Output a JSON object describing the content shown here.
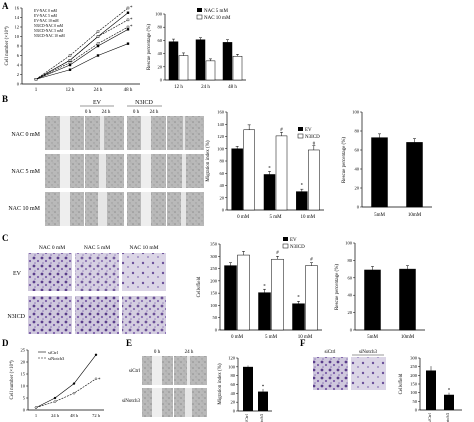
{
  "panels": {
    "A": {
      "letter": "A",
      "growth_chart": {
        "type": "line",
        "ylabel": "Cell number (×10⁴)",
        "yticks": [
          "0",
          "2",
          "4",
          "6",
          "8",
          "10",
          "12",
          "14",
          "16"
        ],
        "xticks": [
          "1",
          "12 h",
          "24 h",
          "48 h"
        ],
        "legend": [
          "EV-NAC 0 mM",
          "EV-NAC 5 mM",
          "EV-NAC 10 mM",
          "N3ICD-NAC 0 mM",
          "N3ICD-NAC 5 mM",
          "N3ICD-NAC 10 mM"
        ],
        "marker": "*",
        "series": [
          {
            "name": "EV-NAC 0 mM",
            "values": [
              1,
              5,
              10,
              15
            ]
          },
          {
            "name": "EV-NAC 5 mM",
            "values": [
              1,
              4,
              8,
              11.5
            ]
          },
          {
            "name": "EV-NAC 10 mM",
            "values": [
              1,
              3,
              6,
              8.5
            ]
          },
          {
            "name": "N3ICD-NAC 0 mM",
            "values": [
              1,
              6,
              11,
              16
            ]
          },
          {
            "name": "N3ICD-NAC 5 mM",
            "values": [
              1,
              5,
              10,
              13.5
            ]
          },
          {
            "name": "N3ICD-NAC 10 mM",
            "values": [
              1,
              4.5,
              8.5,
              12
            ]
          }
        ]
      },
      "rescue_chart": {
        "type": "bar",
        "ylabel": "Rescue percentage (%)",
        "yticks": [
          "0",
          "20",
          "40",
          "60",
          "80",
          "100"
        ],
        "categories": [
          "12 h",
          "24 h",
          "48 h"
        ],
        "legend": [
          "NAC 5 mM",
          "NAC 10 mM"
        ],
        "series": [
          {
            "name": "NAC 5 mM",
            "values": [
              58,
              61,
              57
            ],
            "errors": [
              4,
              3,
              4
            ]
          },
          {
            "name": "NAC 10 mM",
            "values": [
              37,
              29,
              36
            ],
            "errors": [
              4,
              3,
              3
            ]
          }
        ],
        "ylim": [
          0,
          100
        ]
      }
    },
    "B": {
      "letter": "B",
      "groups": [
        "EV",
        "N3ICD"
      ],
      "times": [
        "0 h",
        "24 h"
      ],
      "rows": [
        "NAC 0 mM",
        "NAC 5 mM",
        "NAC 10 mM"
      ],
      "migration_chart": {
        "type": "bar",
        "ylabel": "Migration index (%)",
        "yticks": [
          "0",
          "20",
          "40",
          "60",
          "80",
          "100",
          "120",
          "140",
          "160"
        ],
        "categories": [
          "0 mM",
          "5 mM",
          "10 mM"
        ],
        "legend": [
          "EV",
          "N3ICD"
        ],
        "series": [
          {
            "name": "EV",
            "values": [
              100,
              58,
              30
            ],
            "errors": [
              4,
              5,
              4
            ]
          },
          {
            "name": "N3ICD",
            "values": [
              131,
              121,
              98
            ],
            "errors": [
              8,
              6,
              7
            ]
          }
        ],
        "marks": {
          "ev": "*",
          "n3icd": "#"
        },
        "ylim": [
          0,
          160
        ]
      },
      "rescue_chart": {
        "type": "bar",
        "ylabel": "Rescue percentage (%)",
        "yticks": [
          "0",
          "20",
          "40",
          "60",
          "80",
          "100"
        ],
        "categories": [
          "5mM",
          "10mM"
        ],
        "values": [
          73,
          68
        ],
        "errors": [
          4,
          4
        ],
        "ylim": [
          0,
          100
        ]
      }
    },
    "C": {
      "letter": "C",
      "cols": [
        "NAC 0 mM",
        "NAC 5 mM",
        "NAC 10 mM"
      ],
      "rows": [
        "EV",
        "N3ICD"
      ],
      "cells_chart": {
        "type": "bar",
        "ylabel": "Cells/field",
        "yticks": [
          "0",
          "50",
          "100",
          "150",
          "200",
          "250",
          "300",
          "350"
        ],
        "categories": [
          "0 mM",
          "5 mM",
          "10 mM"
        ],
        "legend": [
          "EV",
          "N3ICD"
        ],
        "series": [
          {
            "name": "EV",
            "values": [
              262,
              152,
              107
            ],
            "errors": [
              12,
              14,
              10
            ]
          },
          {
            "name": "N3ICD",
            "values": [
              305,
              288,
              262
            ],
            "errors": [
              15,
              12,
              12
            ]
          }
        ],
        "marks": {
          "ev": "*",
          "n3icd": "#"
        },
        "ylim": [
          0,
          350
        ]
      },
      "rescue_chart": {
        "type": "bar",
        "ylabel": "Rescue percentage (%)",
        "yticks": [
          "0",
          "20",
          "40",
          "60",
          "80",
          "100"
        ],
        "categories": [
          "5mM",
          "10mM"
        ],
        "values": [
          69,
          70
        ],
        "errors": [
          4,
          4
        ],
        "ylim": [
          0,
          100
        ]
      }
    },
    "D": {
      "letter": "D",
      "growth_chart": {
        "type": "line",
        "ylabel": "Cell number (×10⁴)",
        "yticks": [
          "0",
          "5",
          "10",
          "15",
          "20",
          "25"
        ],
        "xticks": [
          "1",
          "24 h",
          "48 h",
          "72 h"
        ],
        "legend": [
          "siCtrl",
          "siNotch3"
        ],
        "series": [
          {
            "name": "siCtrl",
            "values": [
              1,
              5,
              11,
              23
            ]
          },
          {
            "name": "siNotch3",
            "values": [
              1,
              3.5,
              7,
              13
            ]
          }
        ],
        "marker": "*",
        "ylim": [
          0,
          25
        ]
      }
    },
    "E": {
      "letter": "E",
      "times": [
        "0 h",
        "24 h"
      ],
      "rows": [
        "siCtrl",
        "siNotch3"
      ],
      "migration_chart": {
        "type": "bar",
        "ylabel": "Migration index (%)",
        "yticks": [
          "0",
          "20",
          "40",
          "60",
          "80",
          "100",
          "120"
        ],
        "categories": [
          "siCtrl",
          "siNotch3"
        ],
        "values": [
          100,
          44
        ],
        "errors": [
          3,
          6
        ],
        "marker": "*",
        "ylim": [
          0,
          120
        ]
      }
    },
    "F": {
      "letter": "F",
      "cols": [
        "siCtrl",
        "siNotch3"
      ],
      "cells_chart": {
        "type": "bar",
        "ylabel": "Cells/field",
        "yticks": [
          "0",
          "50",
          "100",
          "150",
          "200",
          "250",
          "300"
        ],
        "categories": [
          "siCtrl",
          "siNotch3"
        ],
        "values": [
          228,
          88
        ],
        "errors": [
          25,
          12
        ],
        "marker": "*",
        "ylim": [
          0,
          300
        ]
      }
    }
  },
  "chart_data": [
    {
      "type": "line",
      "panel": "A",
      "series": [
        {
          "name": "EV-NAC 0 mM",
          "x": [
            "1",
            "12 h",
            "24 h",
            "48 h"
          ],
          "values": [
            1,
            5,
            10,
            15
          ]
        },
        {
          "name": "EV-NAC 5 mM",
          "x": [
            "1",
            "12 h",
            "24 h",
            "48 h"
          ],
          "values": [
            1,
            4,
            8,
            11.5
          ]
        },
        {
          "name": "EV-NAC 10 mM",
          "x": [
            "1",
            "12 h",
            "24 h",
            "48 h"
          ],
          "values": [
            1,
            3,
            6,
            8.5
          ]
        },
        {
          "name": "N3ICD-NAC 0 mM",
          "x": [
            "1",
            "12 h",
            "24 h",
            "48 h"
          ],
          "values": [
            1,
            6,
            11,
            16
          ]
        },
        {
          "name": "N3ICD-NAC 5 mM",
          "x": [
            "1",
            "12 h",
            "24 h",
            "48 h"
          ],
          "values": [
            1,
            5,
            10,
            13.5
          ]
        },
        {
          "name": "N3ICD-NAC 10 mM",
          "x": [
            "1",
            "12 h",
            "24 h",
            "48 h"
          ],
          "values": [
            1,
            4.5,
            8.5,
            12
          ]
        }
      ],
      "ylabel": "Cell number (×10⁴)",
      "ylim": [
        0,
        16
      ]
    },
    {
      "type": "bar",
      "panel": "A",
      "categories": [
        "12 h",
        "24 h",
        "48 h"
      ],
      "series": [
        {
          "name": "NAC 5 mM",
          "values": [
            58,
            61,
            57
          ]
        },
        {
          "name": "NAC 10 mM",
          "values": [
            37,
            29,
            36
          ]
        }
      ],
      "ylabel": "Rescue percentage (%)",
      "ylim": [
        0,
        100
      ]
    },
    {
      "type": "bar",
      "panel": "B",
      "categories": [
        "0 mM",
        "5 mM",
        "10 mM"
      ],
      "series": [
        {
          "name": "EV",
          "values": [
            100,
            58,
            30
          ]
        },
        {
          "name": "N3ICD",
          "values": [
            131,
            121,
            98
          ]
        }
      ],
      "ylabel": "Migration index (%)",
      "ylim": [
        0,
        160
      ]
    },
    {
      "type": "bar",
      "panel": "B",
      "categories": [
        "5mM",
        "10mM"
      ],
      "values": [
        73,
        68
      ],
      "ylabel": "Rescue percentage (%)",
      "ylim": [
        0,
        100
      ]
    },
    {
      "type": "bar",
      "panel": "C",
      "categories": [
        "0 mM",
        "5 mM",
        "10 mM"
      ],
      "series": [
        {
          "name": "EV",
          "values": [
            262,
            152,
            107
          ]
        },
        {
          "name": "N3ICD",
          "values": [
            305,
            288,
            262
          ]
        }
      ],
      "ylabel": "Cells/field",
      "ylim": [
        0,
        350
      ]
    },
    {
      "type": "bar",
      "panel": "C",
      "categories": [
        "5mM",
        "10mM"
      ],
      "values": [
        69,
        70
      ],
      "ylabel": "Rescue percentage (%)",
      "ylim": [
        0,
        100
      ]
    },
    {
      "type": "line",
      "panel": "D",
      "x": [
        "1",
        "24 h",
        "48 h",
        "72 h"
      ],
      "series": [
        {
          "name": "siCtrl",
          "values": [
            1,
            5,
            11,
            23
          ]
        },
        {
          "name": "siNotch3",
          "values": [
            1,
            3.5,
            7,
            13
          ]
        }
      ],
      "ylabel": "Cell number (×10⁴)",
      "ylim": [
        0,
        25
      ]
    },
    {
      "type": "bar",
      "panel": "E",
      "categories": [
        "siCtrl",
        "siNotch3"
      ],
      "values": [
        100,
        44
      ],
      "ylabel": "Migration index (%)",
      "ylim": [
        0,
        120
      ]
    },
    {
      "type": "bar",
      "panel": "F",
      "categories": [
        "siCtrl",
        "siNotch3"
      ],
      "values": [
        228,
        88
      ],
      "ylabel": "Cells/field",
      "ylim": [
        0,
        300
      ]
    }
  ]
}
